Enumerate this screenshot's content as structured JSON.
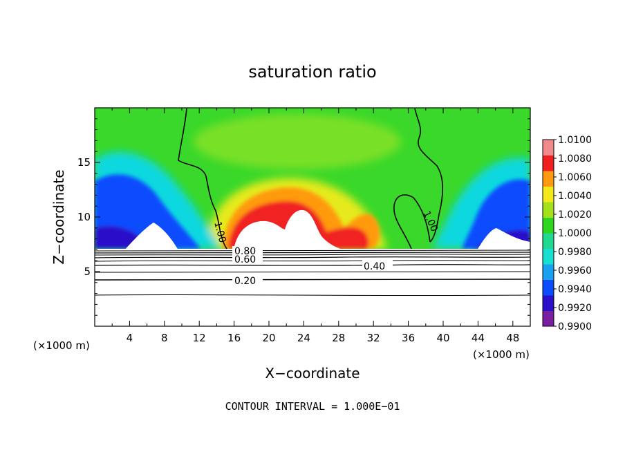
{
  "chart_data": {
    "type": "heatmap",
    "title": "saturation ratio",
    "xlabel": "X−coordinate",
    "ylabel": "Z−coordinate",
    "x_unit": "(×1000 m)",
    "x_unit_right": "(×1000 m)",
    "xlim": [
      0,
      50
    ],
    "ylim": [
      0,
      20
    ],
    "x_ticks": [
      4,
      8,
      12,
      16,
      20,
      24,
      28,
      32,
      36,
      40,
      44,
      48
    ],
    "y_ticks": [
      5,
      10,
      15
    ],
    "grid": false,
    "colorbar": {
      "min": 0.99,
      "max": 1.01,
      "labels": [
        "1.0100",
        "1.0080",
        "1.0060",
        "1.0040",
        "1.0020",
        "1.0000",
        "0.9980",
        "0.9960",
        "0.9940",
        "0.9920",
        "0.9900"
      ]
    },
    "contour_labels": [
      {
        "text": "1.00",
        "x": 14.5,
        "z": 10.2
      },
      {
        "text": "1.00",
        "x": 38.6,
        "z": 10.0
      },
      {
        "text": "0.80",
        "x": 17.8,
        "z": 6.9
      },
      {
        "text": "0.60",
        "x": 17.8,
        "z": 6.1
      },
      {
        "text": "0.40",
        "x": 32.0,
        "z": 5.5
      },
      {
        "text": "0.20",
        "x": 17.6,
        "z": 4.2
      }
    ],
    "contour_interval_note": "CONTOUR INTERVAL = 1.000E−01"
  },
  "colors": {
    "scale": [
      "#7a1fa0",
      "#2a10c8",
      "#0b4cff",
      "#1aa0f0",
      "#18e0d0",
      "#20d890",
      "#2ed620",
      "#a4e01c",
      "#f2e81a",
      "#ff9a10",
      "#f02020",
      "#f08a8a"
    ],
    "background": "#ffffff",
    "ink": "#000000"
  }
}
